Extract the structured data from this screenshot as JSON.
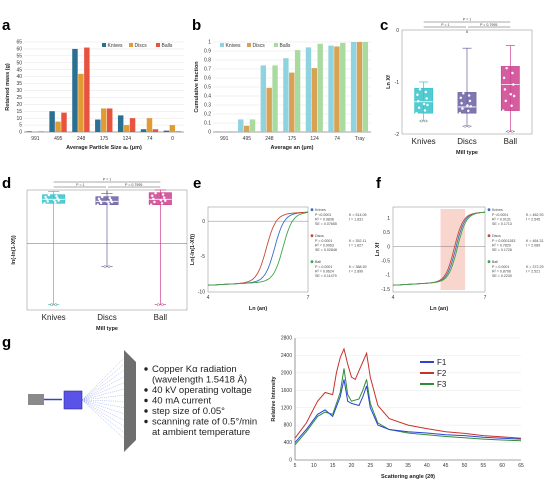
{
  "colors": {
    "knives": "#2b6f93",
    "discs": "#e09b32",
    "balls": "#e85340",
    "cum_knives": "#8fd3e0",
    "cum_discs": "#d8a254",
    "cum_balls": "#a9dba0",
    "box_knives": "#35c2c9",
    "box_discs": "#6a5fa3",
    "box_ball": "#cc3f8e",
    "fit_knives": "#3a6fc4",
    "fit_discs": "#c44a3a",
    "fit_ball": "#3ba54a",
    "xrd_f1": "#2b44d6",
    "xrd_f2": "#c8312a",
    "xrd_f3": "#2e8d3a"
  },
  "panels": {
    "a": "a",
    "b": "b",
    "c": "c",
    "d": "d",
    "e": "e",
    "f": "f",
    "g": "g"
  },
  "chart_data": [
    {
      "id": "a",
      "type": "bar",
      "categories": [
        "991",
        "495",
        "248",
        "175",
        "124",
        "74",
        "0"
      ],
      "series": [
        {
          "name": "Knives",
          "values": [
            0.5,
            15,
            60,
            9,
            12,
            2,
            1
          ]
        },
        {
          "name": "Discs",
          "values": [
            0.3,
            7.5,
            42,
            17,
            5,
            10,
            5
          ]
        },
        {
          "name": "Balls",
          "values": [
            0.4,
            14,
            61,
            17,
            10,
            2,
            0.5
          ]
        }
      ],
      "ylabel": "Retained mass (g)",
      "xlabel": "Average Particle Size aₙ (μm)",
      "ylim": [
        0,
        65
      ],
      "yticks": [
        "0",
        "5",
        "10",
        "15",
        "20",
        "25",
        "30",
        "35",
        "40",
        "45",
        "50",
        "55",
        "60",
        "65"
      ],
      "legend": "top-right"
    },
    {
      "id": "b",
      "type": "bar",
      "categories": [
        "991",
        "495",
        "248",
        "175",
        "124",
        "74",
        "Tray"
      ],
      "series": [
        {
          "name": "Knives",
          "values": [
            0.01,
            0.14,
            0.74,
            0.82,
            0.94,
            0.96,
            1.0
          ]
        },
        {
          "name": "Discs",
          "values": [
            0.0,
            0.07,
            0.49,
            0.66,
            0.71,
            0.95,
            1.0
          ]
        },
        {
          "name": "Balls",
          "values": [
            0.01,
            0.14,
            0.74,
            0.91,
            0.98,
            0.99,
            1.0
          ]
        }
      ],
      "ylabel": "Cumulative fraction",
      "xlabel": "Average an (μm)",
      "ylim": [
        0,
        1.0
      ],
      "yticks": [
        "0",
        "0.1",
        "0.2",
        "0.3",
        "0.4",
        "0.5",
        "0.6",
        "0.7",
        "0.8",
        "0.9",
        "1"
      ],
      "legend": "top-left"
    },
    {
      "id": "c",
      "type": "box",
      "categories": [
        "Knives",
        "Discs",
        "Ball"
      ],
      "ylabel": "Ln Xf",
      "xlabel": "Mill type",
      "ylim": [
        -2,
        0
      ],
      "yticks": [
        "0",
        "-1",
        "-2"
      ],
      "boxes": [
        {
          "min": -1.75,
          "q1": -1.6,
          "median": -1.38,
          "q3": -1.12,
          "max": -1.0
        },
        {
          "min": -1.85,
          "q1": -1.6,
          "median": -1.48,
          "q3": -1.2,
          "max": -0.35
        },
        {
          "min": -1.95,
          "q1": -1.55,
          "median": -1.05,
          "q3": -0.7,
          "max": -0.3
        }
      ],
      "annotations": [
        "P = 1",
        "P = 1",
        "P = 0.7995",
        "8"
      ]
    },
    {
      "id": "d",
      "type": "box",
      "categories": [
        "Knives",
        "Discs",
        "Ball"
      ],
      "ylabel": "ln(-ln(1-Xf))",
      "xlabel": "Mill type",
      "ylim": [
        -1,
        0.8
      ],
      "boxes": [
        {
          "min": -0.92,
          "q1": 0.6,
          "median": 0.66,
          "q3": 0.73,
          "max": 0.78
        },
        {
          "min": -0.35,
          "q1": 0.58,
          "median": 0.63,
          "q3": 0.7,
          "max": 0.75
        },
        {
          "min": -0.92,
          "q1": 0.58,
          "median": 0.66,
          "q3": 0.76,
          "max": 0.8
        }
      ],
      "annotations": [
        "P = 1",
        "P = 1",
        "P = 0.7995",
        "8"
      ]
    },
    {
      "id": "e",
      "type": "line",
      "ylabel": "Ln(-ln(1-Xf))",
      "xlabel": "Ln (an)",
      "xlim": [
        4,
        7
      ],
      "ylim": [
        -10,
        2
      ],
      "xticks": [
        "4",
        "7"
      ],
      "yticks": [
        "-10",
        "-5",
        "0"
      ],
      "series": [
        {
          "name": "Knives",
          "stats": [
            "P <0.0001",
            "R² = 0.9836",
            "SE = 0.07655"
          ],
          "k": "K = 514.05",
          "t": "t = 1.831"
        },
        {
          "name": "Discs",
          "stats": [
            "P = 0.0001",
            "R² = 0.9963",
            "SE = 0.02848"
          ],
          "k": "K = 352.11",
          "t": "t = 1.827"
        },
        {
          "name": "Ball",
          "stats": [
            "P = 0.0001",
            "R² = 0.9624",
            "SE = 0.11479"
          ],
          "k": "K = 388.39",
          "t": "t = 2.890"
        }
      ]
    },
    {
      "id": "f",
      "type": "line",
      "ylabel": "Ln Xf",
      "xlabel": "Ln (an)",
      "xlim": [
        4,
        7
      ],
      "ylim": [
        -1.6,
        1.4
      ],
      "xticks": [
        "4",
        "7"
      ],
      "yticks": [
        "1",
        "0.5",
        "0",
        "-0.5",
        "-1",
        "-1.5"
      ],
      "series": [
        {
          "name": "Knives",
          "stats": [
            "P <0.0001",
            "R² = 0.9131",
            "SE = 0.1713"
          ],
          "k": "K = 462.93",
          "t": "t = 2.545"
        },
        {
          "name": "Discs",
          "stats": [
            "P = 0.0001283",
            "R² = 0.7829",
            "SE = 0.1726"
          ],
          "k": "K = 464.31",
          "t": "t = 2.089"
        },
        {
          "name": "Ball",
          "stats": [
            "P = 0.0001",
            "R² = 0.8706",
            "SE = 0.2230"
          ],
          "k": "K = 372.29",
          "t": "t = 2.521"
        }
      ]
    },
    {
      "id": "g",
      "type": "line",
      "ylabel": "Relative Intensity",
      "xlabel": "Scattering angle (2θ)",
      "xlim": [
        5,
        65
      ],
      "ylim": [
        0,
        2800
      ],
      "xticks": [
        "5",
        "10",
        "15",
        "20",
        "25",
        "30",
        "35",
        "40",
        "45",
        "50",
        "55",
        "60",
        "65"
      ],
      "yticks": [
        "0",
        "400",
        "800",
        "1200",
        "1600",
        "2000",
        "2400",
        "2800"
      ],
      "legend": "right",
      "series": [
        {
          "name": "F1",
          "points": [
            [
              5,
              400
            ],
            [
              8,
              700
            ],
            [
              11,
              1050
            ],
            [
              13,
              1150
            ],
            [
              15,
              1000
            ],
            [
              17,
              1450
            ],
            [
              18,
              1850
            ],
            [
              19,
              1350
            ],
            [
              20,
              1300
            ],
            [
              22,
              1250
            ],
            [
              23,
              1450
            ],
            [
              24,
              1700
            ],
            [
              25,
              1200
            ],
            [
              27,
              800
            ],
            [
              30,
              700
            ],
            [
              35,
              650
            ],
            [
              40,
              620
            ],
            [
              45,
              580
            ],
            [
              50,
              560
            ],
            [
              55,
              520
            ],
            [
              60,
              500
            ],
            [
              65,
              480
            ]
          ]
        },
        {
          "name": "F2",
          "points": [
            [
              5,
              500
            ],
            [
              8,
              850
            ],
            [
              11,
              1350
            ],
            [
              13,
              1550
            ],
            [
              15,
              1500
            ],
            [
              16,
              2000
            ],
            [
              17,
              2350
            ],
            [
              18,
              2550
            ],
            [
              19,
              2200
            ],
            [
              20,
              1900
            ],
            [
              21,
              1850
            ],
            [
              22,
              2050
            ],
            [
              23,
              2250
            ],
            [
              24,
              2450
            ],
            [
              25,
              1900
            ],
            [
              27,
              1250
            ],
            [
              30,
              950
            ],
            [
              35,
              800
            ],
            [
              40,
              720
            ],
            [
              45,
              650
            ],
            [
              50,
              610
            ],
            [
              55,
              560
            ],
            [
              60,
              530
            ],
            [
              65,
              500
            ]
          ]
        },
        {
          "name": "F3",
          "points": [
            [
              5,
              350
            ],
            [
              8,
              650
            ],
            [
              11,
              1000
            ],
            [
              13,
              1100
            ],
            [
              15,
              1050
            ],
            [
              17,
              1550
            ],
            [
              18,
              2100
            ],
            [
              19,
              1500
            ],
            [
              20,
              1350
            ],
            [
              22,
              1400
            ],
            [
              23,
              1600
            ],
            [
              24,
              1850
            ],
            [
              25,
              1300
            ],
            [
              27,
              850
            ],
            [
              30,
              700
            ],
            [
              35,
              620
            ],
            [
              40,
              580
            ],
            [
              45,
              540
            ],
            [
              50,
              510
            ],
            [
              55,
              480
            ],
            [
              60,
              460
            ],
            [
              65,
              440
            ]
          ]
        }
      ]
    }
  ],
  "xrd_conditions": [
    "Copper Kα radiation",
    "(wavelength 1.5418 Å)",
    "40 kV operating voltage",
    "40 mA current",
    "step size of 0.05°",
    "scanning rate of 0.5°/min",
    "at ambient temperature"
  ]
}
